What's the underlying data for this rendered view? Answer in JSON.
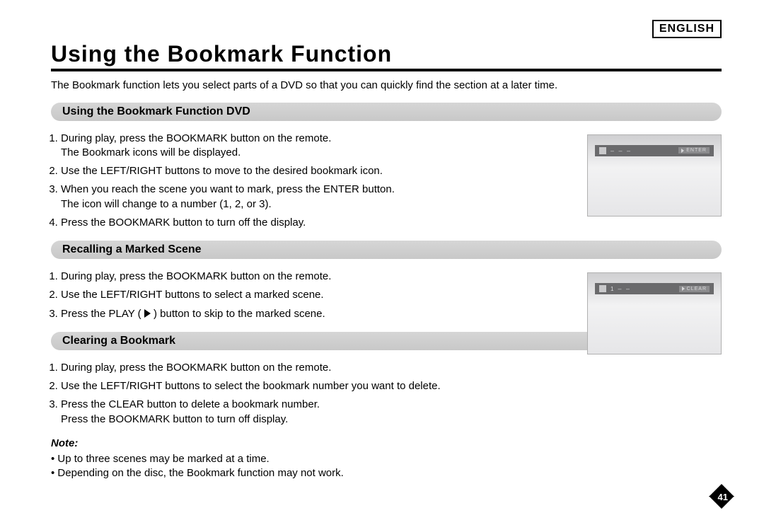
{
  "language_tag": "ENGLISH",
  "title": "Using the Bookmark Function",
  "intro": "The Bookmark function lets you select parts of a DVD so that you can quickly find the section at a later time.",
  "sections": [
    {
      "heading": "Using the Bookmark Function DVD",
      "steps": [
        {
          "main": "During play, press the BOOKMARK button on the remote.",
          "sub": "The Bookmark icons will be displayed."
        },
        {
          "main": "Use the LEFT/RIGHT buttons to move to the desired bookmark icon."
        },
        {
          "main": "When you reach the scene you want to mark, press the ENTER button.",
          "sub": "The icon will change to a number (1, 2, or 3)."
        },
        {
          "main": "Press the BOOKMARK button to turn off the display."
        }
      ],
      "osd": {
        "slots": "–  –  –",
        "button": "ENTER"
      }
    },
    {
      "heading": "Recalling a Marked Scene",
      "steps": [
        {
          "main": "During play, press the BOOKMARK button on the remote."
        },
        {
          "main": "Use the LEFT/RIGHT buttons to select a marked scene."
        },
        {
          "main": "Press the PLAY ( ▶ ) button to skip to the marked scene."
        }
      ],
      "osd": {
        "num": "1",
        "slots": "–  –",
        "button": "CLEAR"
      }
    },
    {
      "heading": "Clearing a Bookmark",
      "steps": [
        {
          "main": "During play, press the BOOKMARK button on the remote."
        },
        {
          "main": "Use the LEFT/RIGHT buttons to select the bookmark number you want to delete."
        },
        {
          "main": "Press the CLEAR button to delete a bookmark number.",
          "sub": "Press the BOOKMARK button to turn off display."
        }
      ]
    }
  ],
  "note_heading": "Note:",
  "notes": [
    "Up to three scenes may be marked at a time.",
    "Depending on the disc, the Bookmark function may not work."
  ],
  "page_number": "41",
  "colors": {
    "header_bg": "#cfcfcf",
    "osd_bg": "#e8e8ea",
    "osd_bar": "#6a6a6c",
    "text": "#000000",
    "page_badge": "#000000"
  },
  "typography": {
    "title_fontsize_pt": 24,
    "body_fontsize_pt": 11,
    "section_heading_fontsize_pt": 12
  }
}
